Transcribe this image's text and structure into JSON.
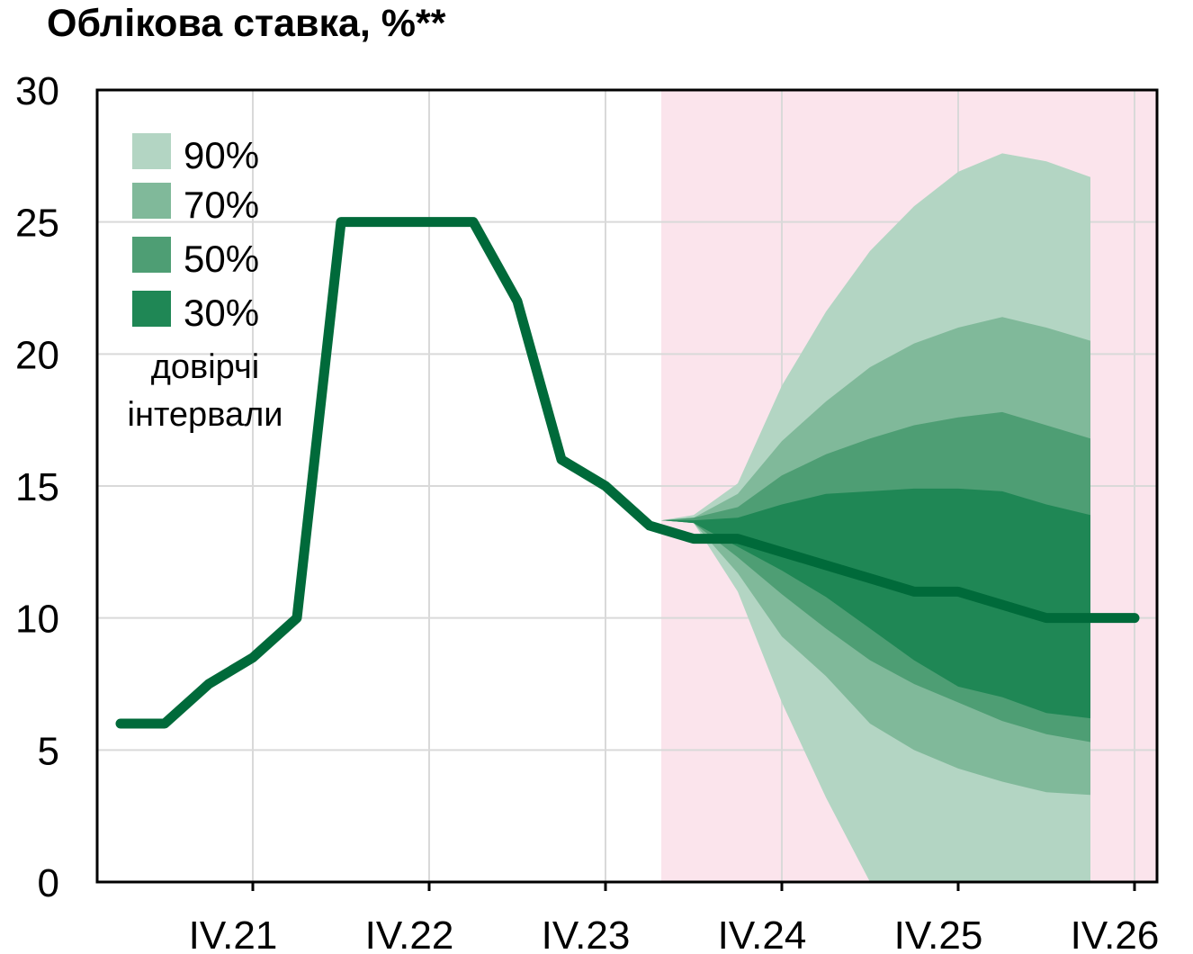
{
  "chart_data": {
    "type": "area",
    "title": "Облікова ставка, %**",
    "xlabel": "",
    "ylabel": "",
    "ylim": [
      0,
      30
    ],
    "yticks": [
      0,
      5,
      10,
      15,
      20,
      25,
      30
    ],
    "x_ticks": [
      "IV.21",
      "IV.22",
      "IV.23",
      "IV.24",
      "IV.25",
      "IV.26"
    ],
    "grid": true,
    "legend_position": "top-left",
    "legend_title": "довірчі інтервали",
    "forecast_shading_color": "#fbe4ec",
    "line_color": "#006a3a",
    "series": [
      {
        "name": "",
        "x": [
          "I.21",
          "II.21",
          "III.21",
          "IV.21",
          "I.22",
          "II.22",
          "III.22",
          "IV.22",
          "I.23",
          "II.23",
          "III.23",
          "IV.23",
          "I.24",
          "II.24",
          "III.24",
          "IV.24",
          "I.25",
          "II.25",
          "III.25",
          "IV.25",
          "I.26",
          "II.26",
          "III.26",
          "IV.26"
        ],
        "values": [
          6.0,
          6.0,
          7.5,
          8.5,
          10.0,
          25.0,
          25.0,
          25.0,
          25.0,
          22.0,
          16.0,
          15.0,
          13.5,
          13.0,
          13.0,
          12.5,
          12.0,
          11.5,
          11.0,
          11.0,
          10.5,
          10.0,
          10.0,
          10.0
        ]
      }
    ],
    "fan": {
      "x": [
        "II.24",
        "III.24",
        "IV.24",
        "I.25",
        "II.25",
        "III.25",
        "IV.25",
        "I.26",
        "II.26",
        "III.26"
      ],
      "bands": [
        {
          "name": "90%",
          "color": "#b3d5c3",
          "upper": [
            13.9,
            15.1,
            18.8,
            21.6,
            23.9,
            25.6,
            26.9,
            27.6,
            27.3,
            26.7
          ],
          "lower": [
            13.6,
            11.0,
            6.8,
            3.2,
            0.0,
            0.0,
            0.0,
            0.0,
            0.0,
            0.0
          ]
        },
        {
          "name": "70%",
          "color": "#80b99a",
          "upper": [
            13.8,
            14.7,
            16.7,
            18.2,
            19.5,
            20.4,
            21.0,
            21.4,
            21.0,
            20.5
          ],
          "lower": [
            13.6,
            11.7,
            9.3,
            7.8,
            6.0,
            5.0,
            4.3,
            3.8,
            3.4,
            3.3
          ]
        },
        {
          "name": "50%",
          "color": "#4e9e74",
          "upper": [
            13.8,
            14.2,
            15.4,
            16.2,
            16.8,
            17.3,
            17.6,
            17.8,
            17.3,
            16.8
          ],
          "lower": [
            13.6,
            12.3,
            10.9,
            9.6,
            8.4,
            7.5,
            6.8,
            6.1,
            5.6,
            5.3
          ]
        },
        {
          "name": "30%",
          "color": "#1f8755",
          "upper": [
            13.7,
            13.8,
            14.3,
            14.7,
            14.8,
            14.9,
            14.9,
            14.8,
            14.3,
            13.9
          ],
          "lower": [
            13.6,
            12.7,
            11.8,
            10.8,
            9.6,
            8.4,
            7.4,
            7.0,
            6.4,
            6.2
          ]
        }
      ]
    }
  }
}
